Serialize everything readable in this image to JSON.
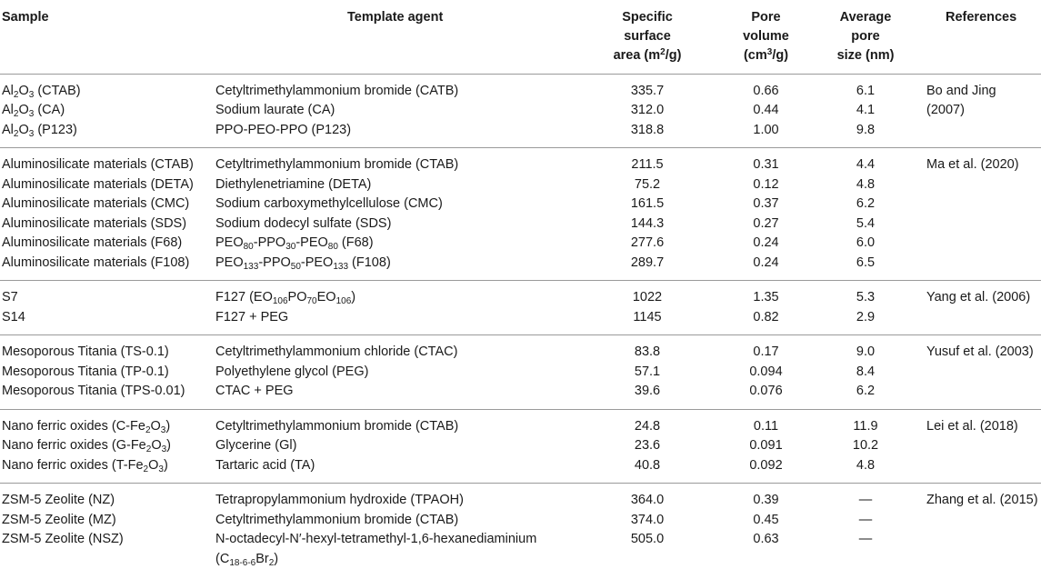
{
  "header": {
    "sample": "Sample",
    "template": "Template agent",
    "ssa_line1": "Specific",
    "ssa_line2": "surface",
    "ssa_line3_pre": "area (m",
    "ssa_line3_sup": "2",
    "ssa_line3_post": "/g)",
    "pv_line1": "Pore",
    "pv_line2": "volume",
    "pv_line3_pre": "(cm",
    "pv_line3_sup": "3",
    "pv_line3_post": "/g)",
    "aps_line1": "Average",
    "aps_line2": "pore",
    "aps_line3": "size (nm)",
    "references": "References"
  },
  "groups": [
    {
      "reference": [
        "Bo and Jing",
        "(2007)"
      ],
      "rows": [
        {
          "sample": [
            {
              "t": "Al"
            },
            {
              "s": "2"
            },
            {
              "t": "O"
            },
            {
              "s": "3"
            },
            {
              "t": " (CTAB)"
            }
          ],
          "template": [
            {
              "t": "Cetyltrimethylammonium bromide (CATB)"
            }
          ],
          "ssa": "335.7",
          "pv": "0.66",
          "aps": "6.1"
        },
        {
          "sample": [
            {
              "t": "Al"
            },
            {
              "s": "2"
            },
            {
              "t": "O"
            },
            {
              "s": "3"
            },
            {
              "t": " (CA)"
            }
          ],
          "template": [
            {
              "t": "Sodium laurate (CA)"
            }
          ],
          "ssa": "312.0",
          "pv": "0.44",
          "aps": "4.1"
        },
        {
          "sample": [
            {
              "t": "Al"
            },
            {
              "s": "2"
            },
            {
              "t": "O"
            },
            {
              "s": "3"
            },
            {
              "t": " (P123)"
            }
          ],
          "template": [
            {
              "t": "PPO-PEO-PPO (P123)"
            }
          ],
          "ssa": "318.8",
          "pv": "1.00",
          "aps": "9.8"
        }
      ]
    },
    {
      "reference": [
        "Ma et al. (2020)"
      ],
      "rows": [
        {
          "sample": [
            {
              "t": "Aluminosilicate materials (CTAB)"
            }
          ],
          "template": [
            {
              "t": "Cetyltrimethylammonium bromide (CTAB)"
            }
          ],
          "ssa": "211.5",
          "pv": "0.31",
          "aps": "4.4"
        },
        {
          "sample": [
            {
              "t": "Aluminosilicate materials (DETA)"
            }
          ],
          "template": [
            {
              "t": "Diethylenetriamine (DETA)"
            }
          ],
          "ssa": "75.2",
          "pv": "0.12",
          "aps": "4.8"
        },
        {
          "sample": [
            {
              "t": "Aluminosilicate materials (CMC)"
            }
          ],
          "template": [
            {
              "t": "Sodium carboxymethylcellulose (CMC)"
            }
          ],
          "ssa": "161.5",
          "pv": "0.37",
          "aps": "6.2"
        },
        {
          "sample": [
            {
              "t": "Aluminosilicate materials (SDS)"
            }
          ],
          "template": [
            {
              "t": "Sodium dodecyl sulfate (SDS)"
            }
          ],
          "ssa": "144.3",
          "pv": "0.27",
          "aps": "5.4"
        },
        {
          "sample": [
            {
              "t": "Aluminosilicate materials (F68)"
            }
          ],
          "template": [
            {
              "t": "PEO"
            },
            {
              "s": "80"
            },
            {
              "t": "-PPO"
            },
            {
              "s": "30"
            },
            {
              "t": "-PEO"
            },
            {
              "s": "80"
            },
            {
              "t": " (F68)"
            }
          ],
          "ssa": "277.6",
          "pv": "0.24",
          "aps": "6.0"
        },
        {
          "sample": [
            {
              "t": "Aluminosilicate materials (F108)"
            }
          ],
          "template": [
            {
              "t": "PEO"
            },
            {
              "s": "133"
            },
            {
              "t": "-PPO"
            },
            {
              "s": "50"
            },
            {
              "t": "-PEO"
            },
            {
              "s": "133"
            },
            {
              "t": " (F108)"
            }
          ],
          "ssa": "289.7",
          "pv": "0.24",
          "aps": "6.5"
        }
      ]
    },
    {
      "reference": [
        "Yang et al. (2006)"
      ],
      "rows": [
        {
          "sample": [
            {
              "t": "S7"
            }
          ],
          "template": [
            {
              "t": "F127 (EO"
            },
            {
              "s": "106"
            },
            {
              "t": "PO"
            },
            {
              "s": "70"
            },
            {
              "t": "EO"
            },
            {
              "s": "106"
            },
            {
              "t": ")"
            }
          ],
          "ssa": "1022",
          "pv": "1.35",
          "aps": "5.3"
        },
        {
          "sample": [
            {
              "t": "S14"
            }
          ],
          "template": [
            {
              "t": "F127 + PEG"
            }
          ],
          "ssa": "1145",
          "pv": "0.82",
          "aps": "2.9"
        }
      ]
    },
    {
      "reference": [
        "Yusuf et al. (2003)"
      ],
      "rows": [
        {
          "sample": [
            {
              "t": "Mesoporous Titania (TS-0.1)"
            }
          ],
          "template": [
            {
              "t": "Cetyltrimethylammonium chloride (CTAC)"
            }
          ],
          "ssa": "83.8",
          "pv": "0.17",
          "aps": "9.0"
        },
        {
          "sample": [
            {
              "t": "Mesoporous Titania (TP-0.1)"
            }
          ],
          "template": [
            {
              "t": "Polyethylene glycol (PEG)"
            }
          ],
          "ssa": "57.1",
          "pv": "0.094",
          "aps": "8.4"
        },
        {
          "sample": [
            {
              "t": "Mesoporous Titania (TPS-0.01)"
            }
          ],
          "template": [
            {
              "t": "CTAC + PEG"
            }
          ],
          "ssa": "39.6",
          "pv": "0.076",
          "aps": "6.2"
        }
      ]
    },
    {
      "reference": [
        "Lei et al. (2018)"
      ],
      "rows": [
        {
          "sample": [
            {
              "t": "Nano ferric oxides (C-Fe"
            },
            {
              "s": "2"
            },
            {
              "t": "O"
            },
            {
              "s": "3"
            },
            {
              "t": ")"
            }
          ],
          "template": [
            {
              "t": "Cetyltrimethylammonium bromide (CTAB)"
            }
          ],
          "ssa": "24.8",
          "pv": "0.11",
          "aps": "11.9"
        },
        {
          "sample": [
            {
              "t": "Nano ferric oxides (G-Fe"
            },
            {
              "s": "2"
            },
            {
              "t": "O"
            },
            {
              "s": "3"
            },
            {
              "t": ")"
            }
          ],
          "template": [
            {
              "t": "Glycerine (Gl)"
            }
          ],
          "ssa": "23.6",
          "pv": "0.091",
          "aps": "10.2"
        },
        {
          "sample": [
            {
              "t": "Nano ferric oxides (T-Fe"
            },
            {
              "s": "2"
            },
            {
              "t": "O"
            },
            {
              "s": "3"
            },
            {
              "t": ")"
            }
          ],
          "template": [
            {
              "t": "Tartaric acid (TA)"
            }
          ],
          "ssa": "40.8",
          "pv": "0.092",
          "aps": "4.8"
        }
      ]
    },
    {
      "reference": [
        "Zhang et al. (2015)"
      ],
      "rows": [
        {
          "sample": [
            {
              "t": "ZSM-5 Zeolite (NZ)"
            }
          ],
          "template": [
            {
              "t": "Tetrapropylammonium hydroxide (TPAOH)"
            }
          ],
          "ssa": "364.0",
          "pv": "0.39",
          "aps": "—"
        },
        {
          "sample": [
            {
              "t": "ZSM-5 Zeolite (MZ)"
            }
          ],
          "template": [
            {
              "t": "Cetyltrimethylammonium bromide (CTAB)"
            }
          ],
          "ssa": "374.0",
          "pv": "0.45",
          "aps": "—"
        },
        {
          "sample": [
            {
              "t": "ZSM-5 Zeolite (NSZ)"
            }
          ],
          "template": [
            {
              "t": "N-octadecyl-N′-hexyl-tetramethyl-1,6-hexanediaminium"
            }
          ],
          "template_line2": [
            {
              "t": "(C"
            },
            {
              "s": "18-6-6"
            },
            {
              "t": "Br"
            },
            {
              "s": "2"
            },
            {
              "t": ")"
            }
          ],
          "ssa": "505.0",
          "pv": "0.63",
          "aps": "—"
        }
      ]
    }
  ]
}
